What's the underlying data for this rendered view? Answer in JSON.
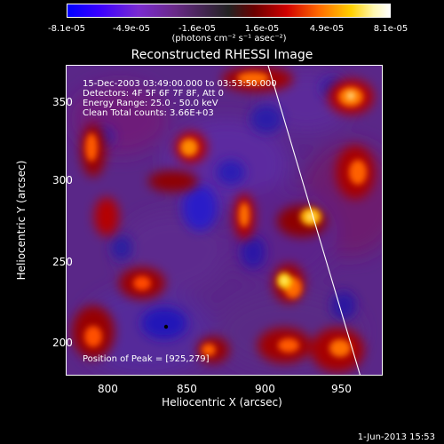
{
  "colorbar": {
    "ticks": [
      "-8.1e-05",
      "-4.9e-05",
      "-1.6e-05",
      "1.6e-05",
      "4.9e-05",
      "8.1e-05"
    ],
    "unit": "(photons cm⁻² s⁻¹ asec⁻²)"
  },
  "title": "Reconstructed RHESSI Image",
  "annotations": {
    "time_range": "15-Dec-2003 03:49:00.000 to 03:53:50.000",
    "detectors": "Detectors: 4F 5F 6F 7F 8F, Att 0",
    "energy": "Energy Range: 25.0 - 50.0 keV",
    "clean": "Clean     Total counts: 3.66E+03",
    "peak": "Position of Peak = [925,279]"
  },
  "axes": {
    "xlabel": "Heliocentric X (arcsec)",
    "ylabel": "Heliocentric Y (arcsec)",
    "xticks": [
      "800",
      "850",
      "900",
      "950"
    ],
    "yticks": [
      "200",
      "250",
      "300",
      "350"
    ]
  },
  "footer": {
    "date": "1-Jun-2013 15:53"
  },
  "colors": {
    "bg": "#000000",
    "low": "#0000ff",
    "mid_low": "#6a2a8a",
    "mid_high": "#d00000",
    "high": "#ffffff"
  }
}
